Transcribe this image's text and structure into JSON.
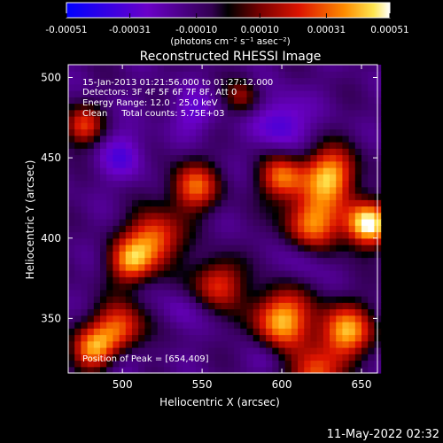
{
  "chart_data": {
    "type": "heatmap",
    "title": "Reconstructed RHESSI Image",
    "xlabel": "Heliocentric X (arcsec)",
    "ylabel": "Heliocentric Y (arcsec)",
    "xlim": [
      466,
      660
    ],
    "ylim": [
      316,
      508
    ],
    "x_ticks": [
      500,
      550,
      600,
      650
    ],
    "y_ticks": [
      350,
      400,
      450,
      500
    ],
    "colorbar": {
      "ticks": [
        {
          "value": -0.00051,
          "label": "-0.00051"
        },
        {
          "value": -0.00031,
          "label": "-0.00031"
        },
        {
          "value": -0.0001,
          "label": "-0.00010"
        },
        {
          "value": 0.0001,
          "label": "0.00010"
        },
        {
          "value": 0.00031,
          "label": "0.00031"
        },
        {
          "value": 0.00051,
          "label": "0.00051"
        }
      ],
      "range": [
        -0.00051,
        0.00051
      ],
      "unit_label": "(photons cm⁻² s⁻¹ asec⁻²)"
    },
    "annotations": [
      "15-Jan-2013 01:21:56.000 to 01:27:12.000",
      "Detectors: 3F 4F 5F 6F 7F 8F, Att 0",
      "Energy Range: 12.0 - 25.0 keV",
      "Clean     Total counts: 5.75E+03"
    ],
    "peak_label": "Position of Peak = [654,409]",
    "peak": {
      "x": 654,
      "y": 409,
      "value": 0.00051
    },
    "hotspots": [
      {
        "x": 654,
        "y": 409,
        "sigma": 10,
        "value": 0.00051
      },
      {
        "x": 630,
        "y": 440,
        "sigma": 12,
        "value": 0.0004
      },
      {
        "x": 620,
        "y": 410,
        "sigma": 13,
        "value": 0.00036
      },
      {
        "x": 600,
        "y": 438,
        "sigma": 10,
        "value": 0.0003
      },
      {
        "x": 545,
        "y": 432,
        "sigma": 11,
        "value": 0.0003
      },
      {
        "x": 520,
        "y": 400,
        "sigma": 12,
        "value": 0.00034
      },
      {
        "x": 505,
        "y": 385,
        "sigma": 10,
        "value": 0.0003
      },
      {
        "x": 498,
        "y": 342,
        "sigma": 12,
        "value": 0.00036
      },
      {
        "x": 560,
        "y": 372,
        "sigma": 11,
        "value": 0.00026
      },
      {
        "x": 600,
        "y": 350,
        "sigma": 13,
        "value": 0.00042
      },
      {
        "x": 640,
        "y": 342,
        "sigma": 12,
        "value": 0.0004
      },
      {
        "x": 620,
        "y": 315,
        "sigma": 11,
        "value": 0.0003
      },
      {
        "x": 475,
        "y": 470,
        "sigma": 9,
        "value": 0.00024
      },
      {
        "x": 480,
        "y": 330,
        "sigma": 10,
        "value": 0.00028
      },
      {
        "x": 575,
        "y": 488,
        "sigma": 8,
        "value": 0.00012
      }
    ],
    "coldspots": [
      {
        "x": 600,
        "y": 472,
        "sigma": 12,
        "value": -0.00035
      },
      {
        "x": 545,
        "y": 478,
        "sigma": 10,
        "value": -0.00028
      },
      {
        "x": 500,
        "y": 452,
        "sigma": 11,
        "value": -0.0003
      },
      {
        "x": 615,
        "y": 388,
        "sigma": 10,
        "value": -0.00025
      },
      {
        "x": 535,
        "y": 355,
        "sigma": 9,
        "value": -0.00022
      },
      {
        "x": 500,
        "y": 327,
        "sigma": 10,
        "value": -0.0003
      },
      {
        "x": 590,
        "y": 325,
        "sigma": 8,
        "value": -0.0002
      }
    ]
  },
  "footer": {
    "date": "11-May-2022 02:32"
  }
}
